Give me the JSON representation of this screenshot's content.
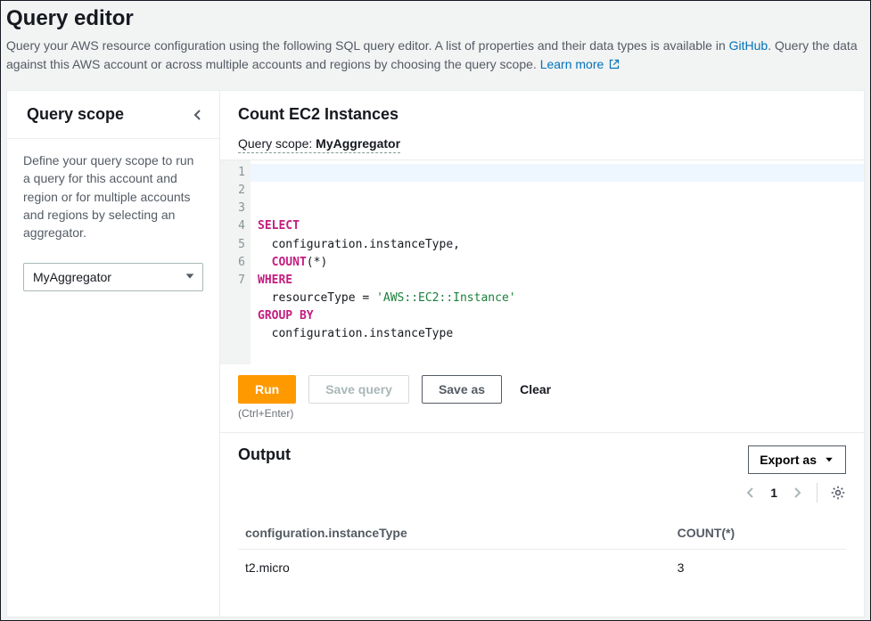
{
  "header": {
    "title": "Query editor",
    "subtitle_pre": "Query your AWS resource configuration using the following SQL query editor. A list of properties and their data types is available in ",
    "github_link": "GitHub",
    "subtitle_mid": ". Query the data against this AWS account or across multiple accounts and regions by choosing the query scope. ",
    "learn_more": "Learn more"
  },
  "sidebar": {
    "title": "Query scope",
    "description": "Define your query scope to run a query for this account and region or for multiple accounts and regions by selecting an aggregator.",
    "selected": "MyAggregator"
  },
  "main": {
    "title": "Count EC2 Instances",
    "scope_label": "Query scope:",
    "scope_value": "MyAggregator"
  },
  "code": {
    "line_count": 7,
    "tokens": [
      [
        [
          "SELECT",
          "kw"
        ]
      ],
      [
        [
          "  configuration.instanceType,",
          "pn"
        ]
      ],
      [
        [
          "  ",
          "pn"
        ],
        [
          "COUNT",
          "kw"
        ],
        [
          "(*)",
          "pn"
        ]
      ],
      [
        [
          "WHERE",
          "kw"
        ]
      ],
      [
        [
          "  resourceType ",
          "pn"
        ],
        [
          "= ",
          "op"
        ],
        [
          "'AWS::EC2::Instance'",
          "str"
        ]
      ],
      [
        [
          "GROUP BY",
          "kw"
        ]
      ],
      [
        [
          "  configuration.instanceType",
          "pn"
        ]
      ]
    ]
  },
  "actions": {
    "run": "Run",
    "save_query": "Save query",
    "save_as": "Save as",
    "clear": "Clear",
    "shortcut": "(Ctrl+Enter)"
  },
  "output": {
    "title": "Output",
    "export": "Export as",
    "page": "1",
    "columns": [
      "configuration.instanceType",
      "COUNT(*)"
    ],
    "rows": [
      [
        "t2.micro",
        "3"
      ]
    ]
  }
}
